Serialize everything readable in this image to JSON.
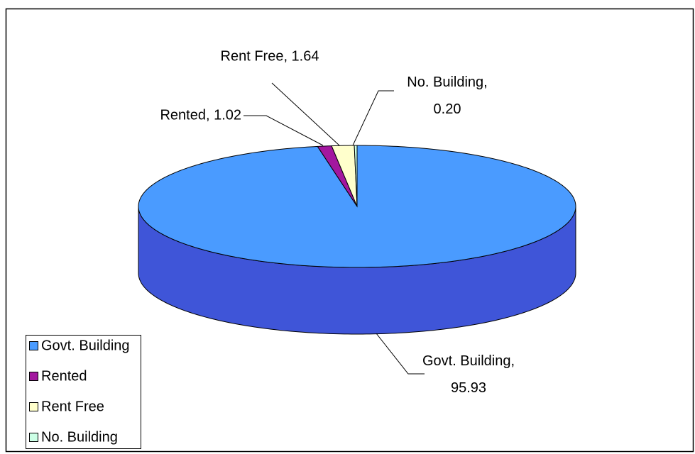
{
  "chart_data": {
    "type": "pie",
    "categories": [
      "Govt. Building",
      "Rented",
      "Rent Free",
      "No. Building"
    ],
    "values": [
      95.93,
      1.02,
      1.64,
      0.2
    ],
    "value_labels": [
      "Govt. Building, 95.93",
      "Rented, 1.02",
      "Rent Free, 1.64",
      "No. Building, 0.20"
    ],
    "colors": [
      "#4a9bff",
      "#a3179f",
      "#ffffcc",
      "#ccffe6"
    ],
    "side_colors": [
      "#3f55d8",
      "#6e0c6c",
      "#cccc99",
      "#99ccb3"
    ],
    "legend": "bottom-left"
  }
}
